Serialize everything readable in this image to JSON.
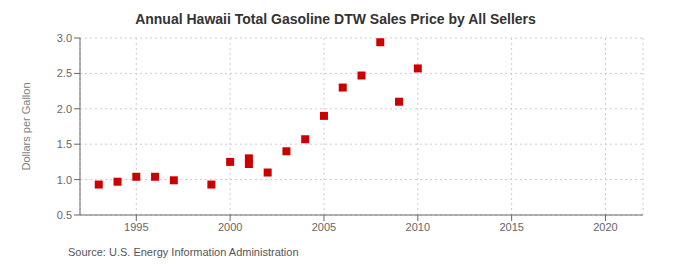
{
  "chart_data": {
    "type": "scatter",
    "title": "Annual Hawaii Total Gasoline DTW Sales Price by All Sellers",
    "ylabel": "Dollars per Gallon",
    "annotations": [
      "Source: U.S. Energy Information Administration"
    ],
    "color": "#cc0000",
    "marker": "square",
    "grid": true,
    "xlim": [
      1992,
      2022
    ],
    "ylim": [
      0.5,
      3.0
    ],
    "xticks": [
      1995,
      2000,
      2005,
      2010,
      2015,
      2020
    ],
    "yticks": [
      0.5,
      {
        "value": 1.0,
        "label": "1.0"
      },
      1.5,
      {
        "value": 2.0,
        "label": "2.0"
      },
      2.5,
      {
        "value": 3.0,
        "label": "3.0"
      }
    ],
    "x": [
      1993,
      1994,
      1995,
      1996,
      1997,
      1999,
      2000,
      2001,
      2001,
      2002,
      2003,
      2004,
      2005,
      2006,
      2007,
      2008,
      2009,
      2010
    ],
    "values": [
      0.93,
      0.97,
      1.04,
      1.04,
      0.99,
      0.93,
      1.25,
      1.22,
      1.3,
      1.1,
      1.4,
      1.57,
      1.9,
      2.3,
      2.47,
      2.94,
      2.1,
      2.57
    ]
  }
}
